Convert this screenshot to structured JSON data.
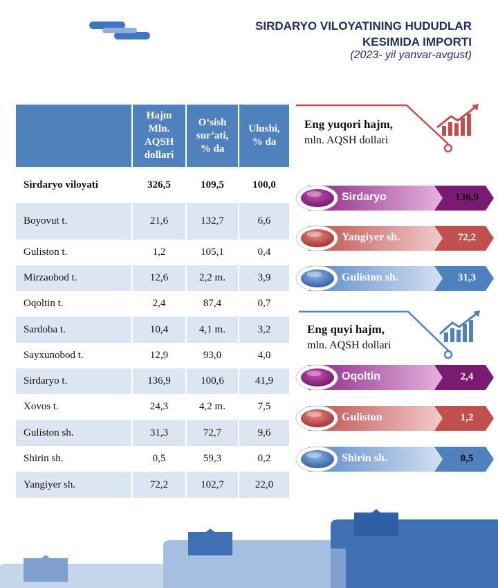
{
  "header": {
    "title_line1": "SIRDARYO VILOYATINING HUDUDLAR",
    "title_line2": "KESIMIDA IMPORTI",
    "subtitle": "(2023- yil yanvar-avgust)"
  },
  "table": {
    "headers": [
      "",
      "Hajm Mln. AQSH dollari",
      "O‘sish sur’ati, % da",
      "Ulushi, % da"
    ],
    "header_lines": {
      "h1": [
        "Hajm",
        "Mln.",
        "AQSH",
        "dollari"
      ],
      "h2": [
        "O‘sish",
        "sur’ati,",
        "% da"
      ],
      "h3": [
        "Ulushi,",
        "% da"
      ]
    },
    "total": {
      "name": "Sirdaryo viloyati",
      "hajm": "326,5",
      "osish": "109,5",
      "ulush": "100,0"
    },
    "rows": [
      {
        "name": "Boyovut t.",
        "hajm": "21,6",
        "osish": "132,7",
        "ulush": "6,6"
      },
      {
        "name": "Guliston t.",
        "hajm": "1,2",
        "osish": "105,1",
        "ulush": "0,4"
      },
      {
        "name": "Mirzaobod t.",
        "hajm": "12,6",
        "osish": "2,2 m.",
        "ulush": "3,9"
      },
      {
        "name": "Oqoltin t.",
        "hajm": "2,4",
        "osish": "87,4",
        "ulush": "0,7"
      },
      {
        "name": "Sardoba t.",
        "hajm": "10,4",
        "osish": "4,1 m.",
        "ulush": "3,2"
      },
      {
        "name": "Sayxunobod t.",
        "hajm": "12,9",
        "osish": "93,0",
        "ulush": "4,0"
      },
      {
        "name": "Sirdaryo t.",
        "hajm": "136,9",
        "osish": "100,6",
        "ulush": "41,9"
      },
      {
        "name": "Xovos t.",
        "hajm": "24,3",
        "osish": "4,2 m.",
        "ulush": "7,5"
      },
      {
        "name": "Guliston sh.",
        "hajm": "31,3",
        "osish": "72,7",
        "ulush": "9,6"
      },
      {
        "name": "Shirin sh.",
        "hajm": "0,5",
        "osish": "59,3",
        "ulush": "0,2"
      },
      {
        "name": "Yangiyer sh.",
        "hajm": "72,2",
        "osish": "102,7",
        "ulush": "22,0"
      }
    ]
  },
  "highest": {
    "title": "Eng yuqori hajm,",
    "subtitle": "mln. AQSH dollari",
    "items": [
      {
        "label": "Sirdaryo",
        "value": "136,9",
        "theme": "purple"
      },
      {
        "label": "Yangiyer sh.",
        "value": "72,2",
        "theme": "red"
      },
      {
        "label": "Guliston sh.",
        "value": "31,3",
        "theme": "blue"
      }
    ]
  },
  "lowest": {
    "title": "Eng quyi hajm,",
    "subtitle": "mln. AQSH dollari",
    "items": [
      {
        "label": "Oqoltin",
        "value": "2,4",
        "theme": "purple"
      },
      {
        "label": "Guliston",
        "value": "1,2",
        "theme": "red"
      },
      {
        "label": "Shirin sh.",
        "value": "0,5",
        "theme": "blue"
      }
    ]
  },
  "icons": {
    "logo": "chain-link-icon",
    "panel": "growth-chart-icon"
  },
  "colors": {
    "table_header": "#4f81bd",
    "row_alt": "#dce6f2",
    "purple": "#7b1a72",
    "red": "#c0504d",
    "blue": "#4f81bd",
    "footer_light": "#c5d5ea",
    "footer_mid": "#7fa0cf",
    "footer_dark": "#3f6fb5"
  }
}
